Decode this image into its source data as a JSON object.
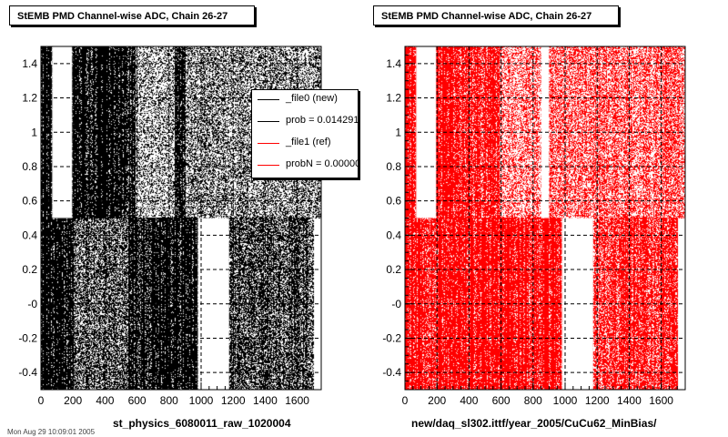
{
  "panels": [
    {
      "title": "StEMB PMD Channel-wise ADC, Chain 26-27",
      "xlabel": "st_physics_6080011_raw_1020004",
      "color": "#000000"
    },
    {
      "title": "StEMB PMD Channel-wise ADC, Chain 26-27",
      "xlabel": "new/daq_sl302.ittf/year_2005/CuCu62_MinBias/",
      "color": "#ff0000"
    }
  ],
  "legend": {
    "entries": [
      {
        "label": "_file0 (new)",
        "color": "#000000"
      },
      {
        "label": "prob = 0.014291",
        "color": "#000000"
      },
      {
        "label": "_file1 (ref)",
        "color": "#ff0000"
      },
      {
        "label": "probN = 0.00000",
        "color": "#ff0000"
      }
    ]
  },
  "footer": "Mon Aug 29 10:09:01 2005",
  "chart_data": [
    {
      "type": "scatter",
      "title": "StEMB PMD Channel-wise ADC, Chain 26-27",
      "xlabel": "st_physics_6080011_raw_1020004",
      "ylabel": "",
      "xlim": [
        0,
        1750
      ],
      "ylim": [
        -0.5,
        1.5
      ],
      "xticks": [
        0,
        200,
        400,
        600,
        800,
        1000,
        1200,
        1400,
        1600
      ],
      "yticks": [
        -0.4,
        -0.2,
        0,
        0.2,
        0.4,
        0.6,
        0.8,
        1,
        1.2,
        1.4
      ],
      "ytick_labels": [
        "-0.4",
        "-0.2",
        "-0",
        "0.2",
        "0.4",
        "0.6",
        "0.8",
        "1",
        "1.2",
        "1.4"
      ],
      "grid": true,
      "series_color": "#000000",
      "empty_regions": [
        {
          "x": [
            70,
            195
          ],
          "y": [
            0.5,
            1.5
          ]
        },
        {
          "x": [
            980,
            1175
          ],
          "y": [
            -0.5,
            0.5
          ]
        }
      ],
      "bands": [
        {
          "x": [
            0,
            70
          ],
          "y": [
            -0.5,
            1.5
          ],
          "density": 0.95
        },
        {
          "x": [
            195,
            360
          ],
          "y": [
            0.5,
            1.5
          ],
          "density": 0.9
        },
        {
          "x": [
            360,
            420
          ],
          "y": [
            0.5,
            1.5
          ],
          "density": 0.97
        },
        {
          "x": [
            420,
            590
          ],
          "y": [
            0.5,
            1.5
          ],
          "density": 0.88
        },
        {
          "x": [
            590,
            840
          ],
          "y": [
            0.5,
            1.5
          ],
          "density": 0.35
        },
        {
          "x": [
            840,
            900
          ],
          "y": [
            0.5,
            1.5
          ],
          "density": 0.95
        },
        {
          "x": [
            900,
            1750
          ],
          "y": [
            0.5,
            1.5
          ],
          "density": 0.45
        },
        {
          "x": [
            70,
            200
          ],
          "y": [
            -0.5,
            0.5
          ],
          "density": 0.92
        },
        {
          "x": [
            200,
            550
          ],
          "y": [
            -0.5,
            0.5
          ],
          "density": 0.6
        },
        {
          "x": [
            550,
            980
          ],
          "y": [
            -0.5,
            0.5
          ],
          "density": 0.88
        },
        {
          "x": [
            1175,
            1700
          ],
          "y": [
            -0.5,
            0.5
          ],
          "density": 0.7
        }
      ]
    },
    {
      "type": "scatter",
      "title": "StEMB PMD Channel-wise ADC, Chain 26-27",
      "xlabel": "new/daq_sl302.ittf/year_2005/CuCu62_MinBias/",
      "ylabel": "",
      "xlim": [
        0,
        1750
      ],
      "ylim": [
        -0.5,
        1.5
      ],
      "xticks": [
        0,
        200,
        400,
        600,
        800,
        1000,
        1200,
        1400,
        1600
      ],
      "yticks": [
        -0.4,
        -0.2,
        0,
        0.2,
        0.4,
        0.6,
        0.8,
        1,
        1.2,
        1.4
      ],
      "ytick_labels": [
        "-0.4",
        "-0.2",
        "-0",
        "0.2",
        "0.4",
        "0.6",
        "0.8",
        "1",
        "1.2",
        "1.4"
      ],
      "grid": true,
      "series_color": "#ff0000",
      "empty_regions": [
        {
          "x": [
            70,
            195
          ],
          "y": [
            0.5,
            1.5
          ]
        },
        {
          "x": [
            850,
            900
          ],
          "y": [
            0.5,
            1.5
          ]
        },
        {
          "x": [
            980,
            1175
          ],
          "y": [
            -0.5,
            0.5
          ]
        }
      ],
      "bands": [
        {
          "x": [
            0,
            70
          ],
          "y": [
            -0.5,
            1.5
          ],
          "density": 0.95
        },
        {
          "x": [
            195,
            360
          ],
          "y": [
            0.5,
            1.5
          ],
          "density": 0.88
        },
        {
          "x": [
            360,
            590
          ],
          "y": [
            0.5,
            1.5
          ],
          "density": 0.78
        },
        {
          "x": [
            590,
            850
          ],
          "y": [
            0.5,
            1.5
          ],
          "density": 0.45
        },
        {
          "x": [
            900,
            1750
          ],
          "y": [
            0.5,
            1.5
          ],
          "density": 0.55
        },
        {
          "x": [
            70,
            550
          ],
          "y": [
            -0.5,
            0.5
          ],
          "density": 0.85
        },
        {
          "x": [
            550,
            980
          ],
          "y": [
            -0.5,
            0.5
          ],
          "density": 0.9
        },
        {
          "x": [
            1175,
            1700
          ],
          "y": [
            -0.5,
            0.5
          ],
          "density": 0.75
        }
      ]
    }
  ]
}
